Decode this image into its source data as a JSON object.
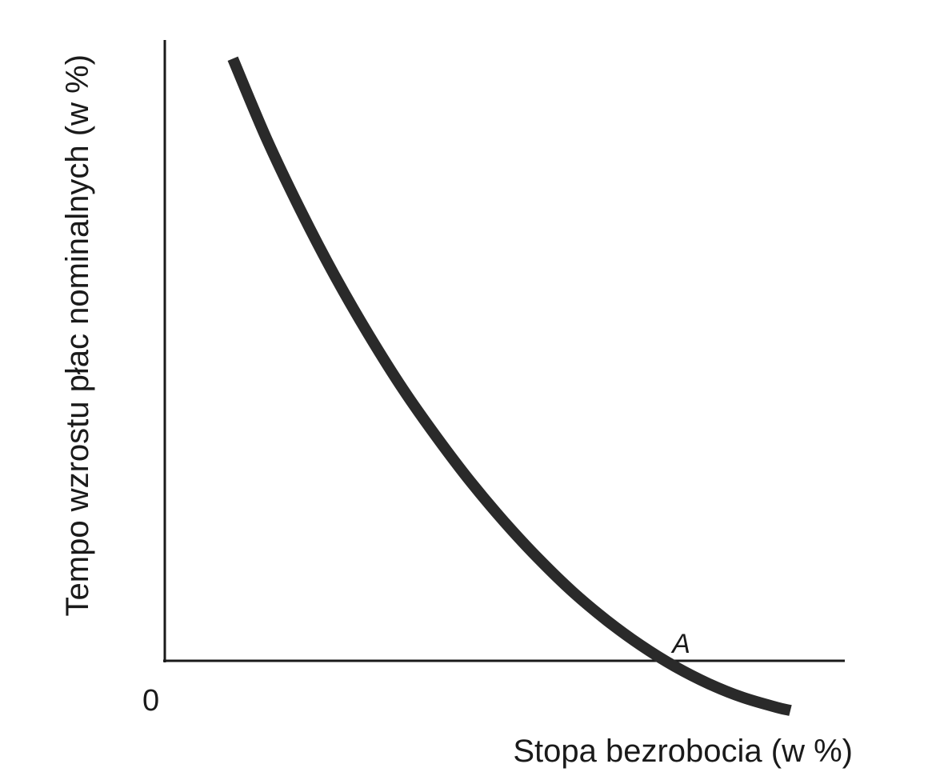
{
  "chart_data": {
    "type": "line",
    "title": "",
    "xlabel": "Stopa bezrobocia (w %)",
    "ylabel": "Tempo wzrostu płac nominalnych  (w %)",
    "origin_label": "0",
    "grid": false,
    "legend": "none",
    "xlim": [
      0,
      100
    ],
    "ylim": [
      -10,
      100
    ],
    "series": [
      {
        "x": [
          10,
          15,
          20,
          25,
          30,
          35,
          40,
          45,
          50,
          55,
          60,
          65,
          70,
          75,
          80,
          85,
          90,
          92
        ],
        "y": [
          97,
          84,
          72.5,
          62,
          52.5,
          43.8,
          36,
          28.8,
          22.3,
          16.4,
          11.1,
          6.5,
          2.5,
          -0.9,
          -3.7,
          -5.9,
          -7.5,
          -8
        ]
      }
    ],
    "annotations": [
      {
        "text": "A",
        "x": 72.5,
        "y": 0
      }
    ],
    "colors": {
      "axis": "#1a1a1a",
      "curve": "#2a2a2a",
      "background": "#ffffff"
    }
  }
}
